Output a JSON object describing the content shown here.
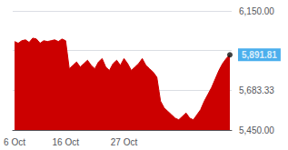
{
  "chart_data": {
    "type": "area",
    "categories": [
      "6 Oct",
      null,
      null,
      null,
      null,
      null,
      null,
      null,
      null,
      null,
      null,
      null,
      null,
      null,
      "16 Oct",
      null,
      null,
      null,
      null,
      null,
      null,
      null,
      null,
      null,
      null,
      null,
      null,
      null,
      null,
      null,
      "27 Oct",
      null,
      null,
      null,
      null,
      null,
      null,
      null,
      null,
      null,
      null,
      null,
      null,
      null,
      null,
      null,
      null,
      null,
      null,
      null,
      null,
      null,
      null,
      null,
      null,
      null,
      null,
      null,
      null,
      null
    ],
    "series": [
      {
        "color": "#cc0000",
        "values": [
          5970,
          5960,
          5975,
          5980,
          5965,
          5990,
          5985,
          5960,
          5975,
          5970,
          5975,
          5980,
          5970,
          5985,
          5975,
          5810,
          5830,
          5850,
          5820,
          5840,
          5860,
          5830,
          5810,
          5850,
          5870,
          5820,
          5800,
          5840,
          5860,
          5830,
          5870,
          5840,
          5800,
          5820,
          5840,
          5870,
          5830,
          5810,
          5790,
          5760,
          5620,
          5580,
          5560,
          5540,
          5520,
          5510,
          5530,
          5550,
          5520,
          5510,
          5540,
          5570,
          5620,
          5660,
          5700,
          5750,
          5800,
          5840,
          5870,
          5892
        ]
      }
    ],
    "ylim": [
      5450.0,
      6150.0
    ],
    "yticks": [
      {
        "value": 5450.0,
        "label": "5,450.00"
      },
      {
        "value": 5683.33,
        "label": "5,683.33"
      },
      {
        "value": 5916.67,
        "label": null
      },
      {
        "value": 6150.0,
        "label": "6,150.00"
      }
    ],
    "annotations": [
      {
        "text": "5,891.81",
        "y": 5891.81
      }
    ],
    "grid": true
  }
}
